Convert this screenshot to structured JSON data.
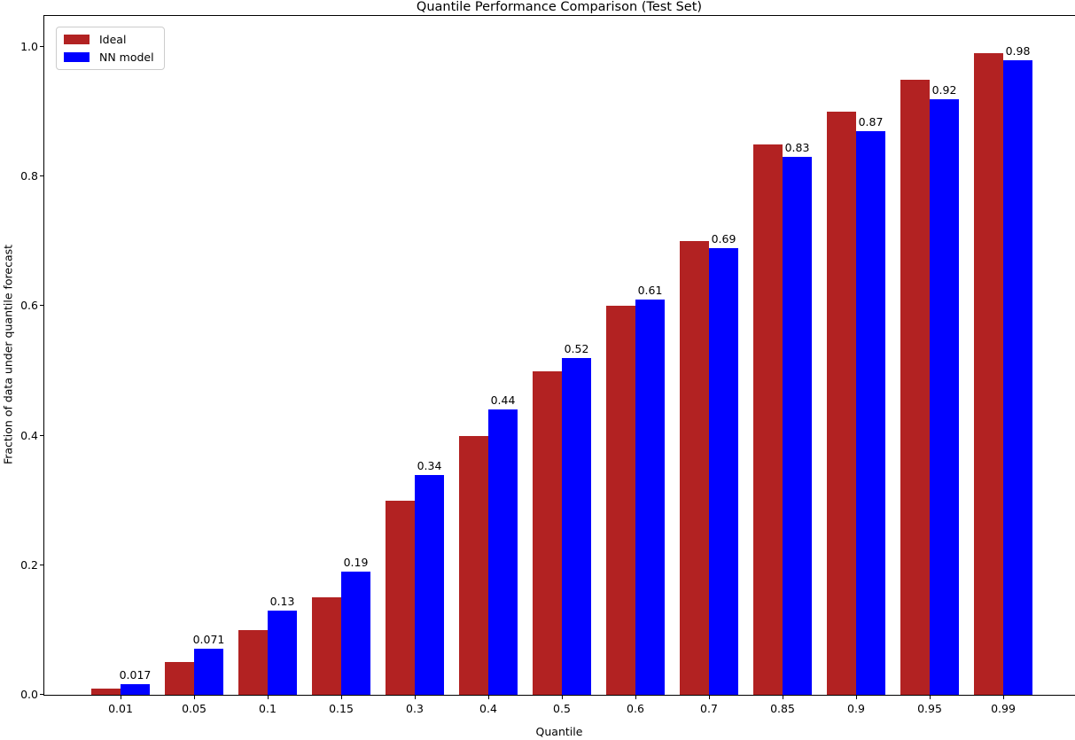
{
  "chart_data": {
    "type": "bar",
    "title": "Quantile Performance Comparison (Test Set)",
    "xlabel": "Quantile",
    "ylabel": "Fraction of data under quantile forecast",
    "categories": [
      "0.01",
      "0.05",
      "0.1",
      "0.15",
      "0.3",
      "0.4",
      "0.5",
      "0.6",
      "0.7",
      "0.85",
      "0.9",
      "0.95",
      "0.99"
    ],
    "series": [
      {
        "name": "Ideal",
        "color": "#B22222",
        "values": [
          0.01,
          0.05,
          0.1,
          0.15,
          0.3,
          0.4,
          0.5,
          0.6,
          0.7,
          0.85,
          0.9,
          0.95,
          0.99
        ]
      },
      {
        "name": "NN model",
        "color": "#0000FF",
        "values": [
          0.017,
          0.071,
          0.13,
          0.19,
          0.34,
          0.44,
          0.52,
          0.61,
          0.69,
          0.83,
          0.87,
          0.92,
          0.98
        ]
      }
    ],
    "bar_labels": [
      "0.017",
      "0.071",
      "0.13",
      "0.19",
      "0.34",
      "0.44",
      "0.52",
      "0.61",
      "0.69",
      "0.83",
      "0.87",
      "0.92",
      "0.98"
    ],
    "yticks": [
      "0.0",
      "0.2",
      "0.4",
      "0.6",
      "0.8",
      "1.0"
    ],
    "ylim": [
      0,
      1.048
    ],
    "grid": false,
    "legend_position": "upper-left",
    "axis_color": "#000000",
    "background_color": "#ffffff"
  }
}
